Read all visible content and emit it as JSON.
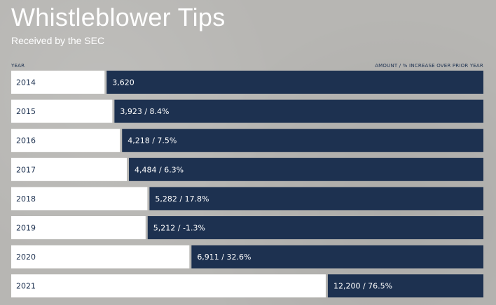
{
  "chart_data": {
    "type": "bar",
    "orientation": "horizontal",
    "title": "Whistleblower Tips",
    "subtitle": "Received by the SEC",
    "column_header_left": "YEAR",
    "column_header_right": "AMOUNT / % INCREASE OVER PRIOR YEAR",
    "categories": [
      "2014",
      "2015",
      "2016",
      "2017",
      "2018",
      "2019",
      "2020",
      "2021"
    ],
    "values": [
      3620,
      3923,
      4218,
      4484,
      5282,
      5212,
      6911,
      12200
    ],
    "data_labels": [
      "3,620",
      "3,923 / 8.4%",
      "4,218 / 7.5%",
      "4,484 / 6.3%",
      "5,282 / 17.8%",
      "5,212 / -1.3%",
      "6,911 / 32.6%",
      "12,200 / 76.5%"
    ],
    "colors": {
      "bar": "#1d3150",
      "label_box": "#ffffff",
      "title_text": "#ffffff",
      "header_text": "#1d3150",
      "background": "#b7b6b3"
    },
    "grid": false,
    "legend": "none"
  }
}
